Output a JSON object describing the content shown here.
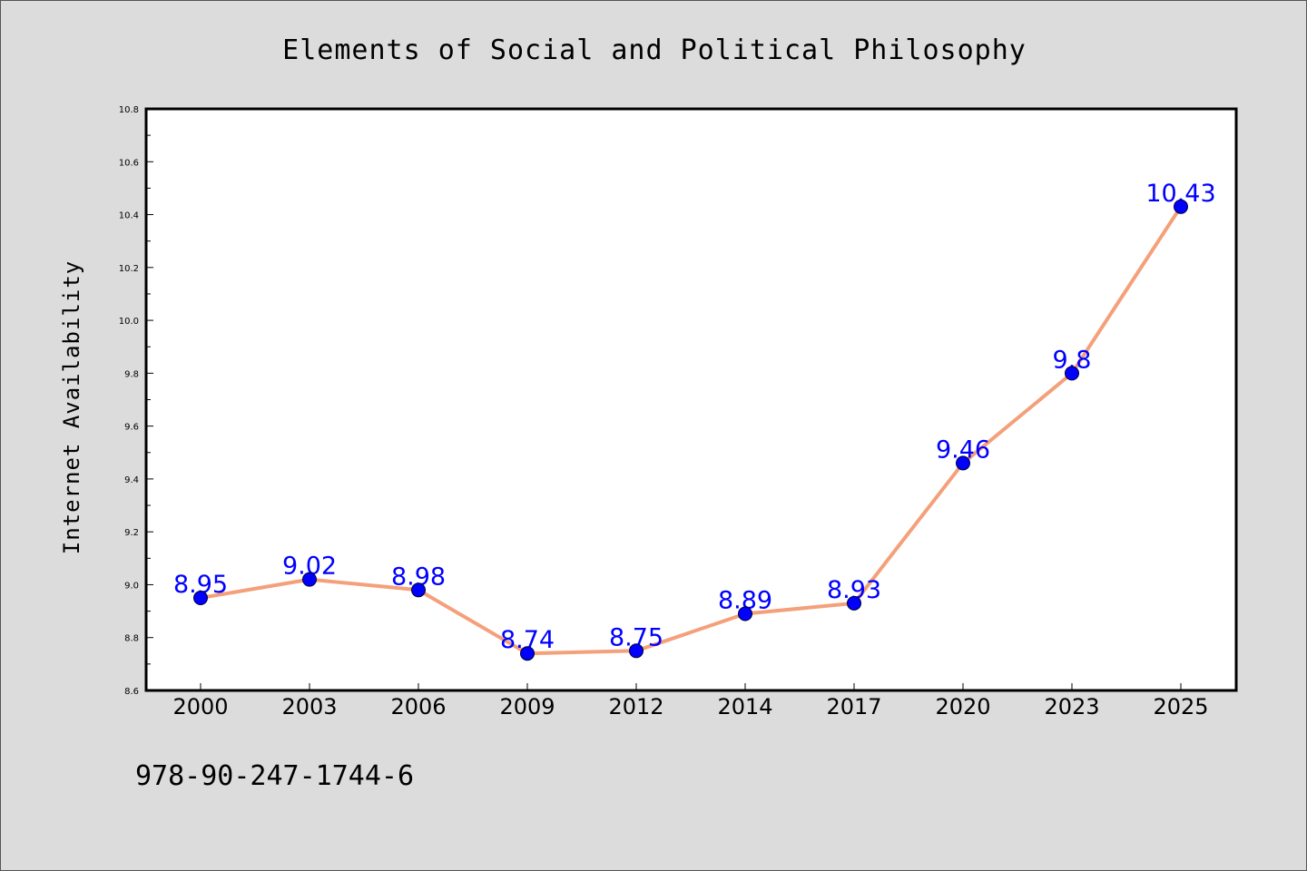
{
  "chart_data": {
    "type": "line",
    "title": "Elements of Social and Political Philosophy",
    "ylabel": "Internet Availability",
    "categories": [
      "2000",
      "2003",
      "2006",
      "2009",
      "2012",
      "2014",
      "2017",
      "2020",
      "2023",
      "2025"
    ],
    "series": [
      {
        "values": [
          8.95,
          9.02,
          8.98,
          8.74,
          8.75,
          8.89,
          8.93,
          9.46,
          9.8,
          10.43
        ]
      }
    ],
    "data_labels": [
      "8.95",
      "9.02",
      "8.98",
      "8.74",
      "8.75",
      "8.89",
      "8.93",
      "9.46",
      "9.8",
      "10.43"
    ],
    "ylim": [
      8.6,
      10.8
    ],
    "yticks": [
      8.6,
      8.8,
      9.0,
      9.2,
      9.4,
      9.6,
      9.8,
      10.0,
      10.2,
      10.4,
      10.6,
      10.8
    ],
    "ytick_labels": [
      "8.6",
      "8.8",
      "9.0",
      "9.2",
      "9.4",
      "9.6",
      "9.8",
      "10.0",
      "10.2",
      "10.4",
      "10.6",
      "10.8"
    ],
    "grid": false,
    "legend": "none",
    "colors": {
      "line": "#f4a07a",
      "marker": "#0000ff",
      "data_label": "#0000ff",
      "plot_background": "#ffffff",
      "figure_background": "#dcdcdc"
    }
  },
  "footer": {
    "isbn": "978-90-247-1744-6"
  }
}
